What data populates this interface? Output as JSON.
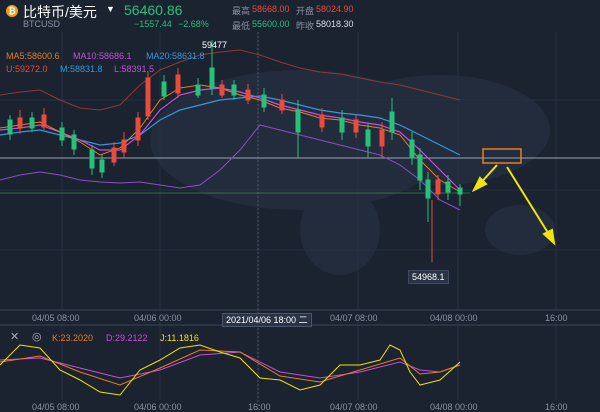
{
  "header": {
    "coin_symbol": "₿",
    "pair_name": "比特币/美元",
    "caret": "▼",
    "symbol": "BTCUSD",
    "last_price": "56460.86",
    "change": "−1557.44",
    "change_pct": "−2.68%",
    "high_label": "最高",
    "high_value": "58668.00",
    "open_label": "开盘",
    "open_value": "58024.90",
    "low_label": "最低",
    "low_value": "55600.00",
    "prev_label": "昨收",
    "prev_value": "58018.30"
  },
  "indicators": {
    "ma5": "MA5:58600.6",
    "ma10": "MA10:58686.1",
    "ma20": "MA20:58631.8",
    "boll_u": "U:59272.0",
    "boll_m": "M:58831.8",
    "boll_l": "L:58391.5"
  },
  "annotations": {
    "peak": "59477",
    "low": "54968.1"
  },
  "x_axis": {
    "ticks": [
      "04/05 08:00",
      "04/06 00:00",
      "04/07 08:00",
      "04/08 00:00",
      "16:00"
    ],
    "crosshair_label": "2021/04/06 18:00 二"
  },
  "kdj": {
    "k": "K:23.2020",
    "d": "D:29.2122",
    "j": "J:11.1816"
  },
  "kdj_axis": {
    "ticks": [
      "04/05 08:00",
      "04/06 00:00",
      "16:00",
      "04/07 08:00",
      "04/08 00:00",
      "16:00"
    ]
  },
  "toolbar": {
    "close_icon": "✕",
    "settings_icon": "◎"
  },
  "colors": {
    "up": "#e74c3c",
    "down": "#27c27a",
    "ma5": "#e67e22",
    "ma10": "#c84fd8",
    "ma20": "#3498db",
    "annotation": "#f1e30c"
  }
}
